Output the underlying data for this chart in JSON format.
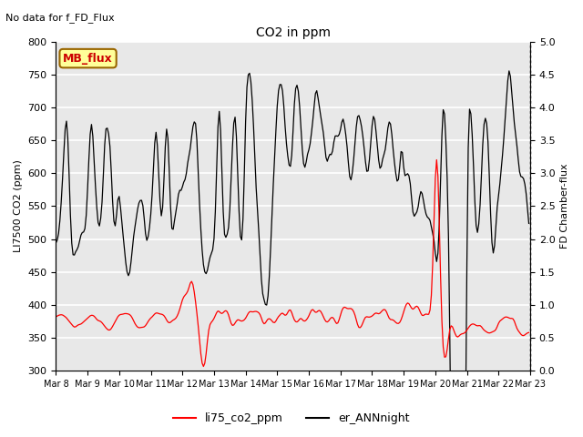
{
  "title": "CO2 in ppm",
  "top_label": "No data for f_FD_Flux",
  "ylabel_left": "LI7500 CO2 (ppm)",
  "ylabel_right": "FD Chamber-flux",
  "ylim_left": [
    300,
    800
  ],
  "ylim_right": [
    0.0,
    5.0
  ],
  "yticks_left": [
    300,
    350,
    400,
    450,
    500,
    550,
    600,
    650,
    700,
    750,
    800
  ],
  "yticks_right": [
    0.0,
    0.5,
    1.0,
    1.5,
    2.0,
    2.5,
    3.0,
    3.5,
    4.0,
    4.5,
    5.0
  ],
  "xtick_labels": [
    "Mar 8",
    "Mar 9",
    "Mar 10",
    "Mar 11",
    "Mar 12",
    "Mar 13",
    "Mar 14",
    "Mar 15",
    "Mar 16",
    "Mar 17",
    "Mar 18",
    "Mar 19",
    "Mar 20",
    "Mar 21",
    "Mar 22",
    "Mar 23"
  ],
  "line1_color": "#ff0000",
  "line2_color": "#000000",
  "legend_line1": "li75_co2_ppm",
  "legend_line2": "er_ANNnight",
  "annotation_text": "MB_flux",
  "annotation_color": "#cc0000",
  "annotation_bg": "#ffff99",
  "annotation_border": "#996600",
  "bg_color": "#e8e8e8",
  "grid_color": "#ffffff",
  "fig_bg": "#ffffff"
}
